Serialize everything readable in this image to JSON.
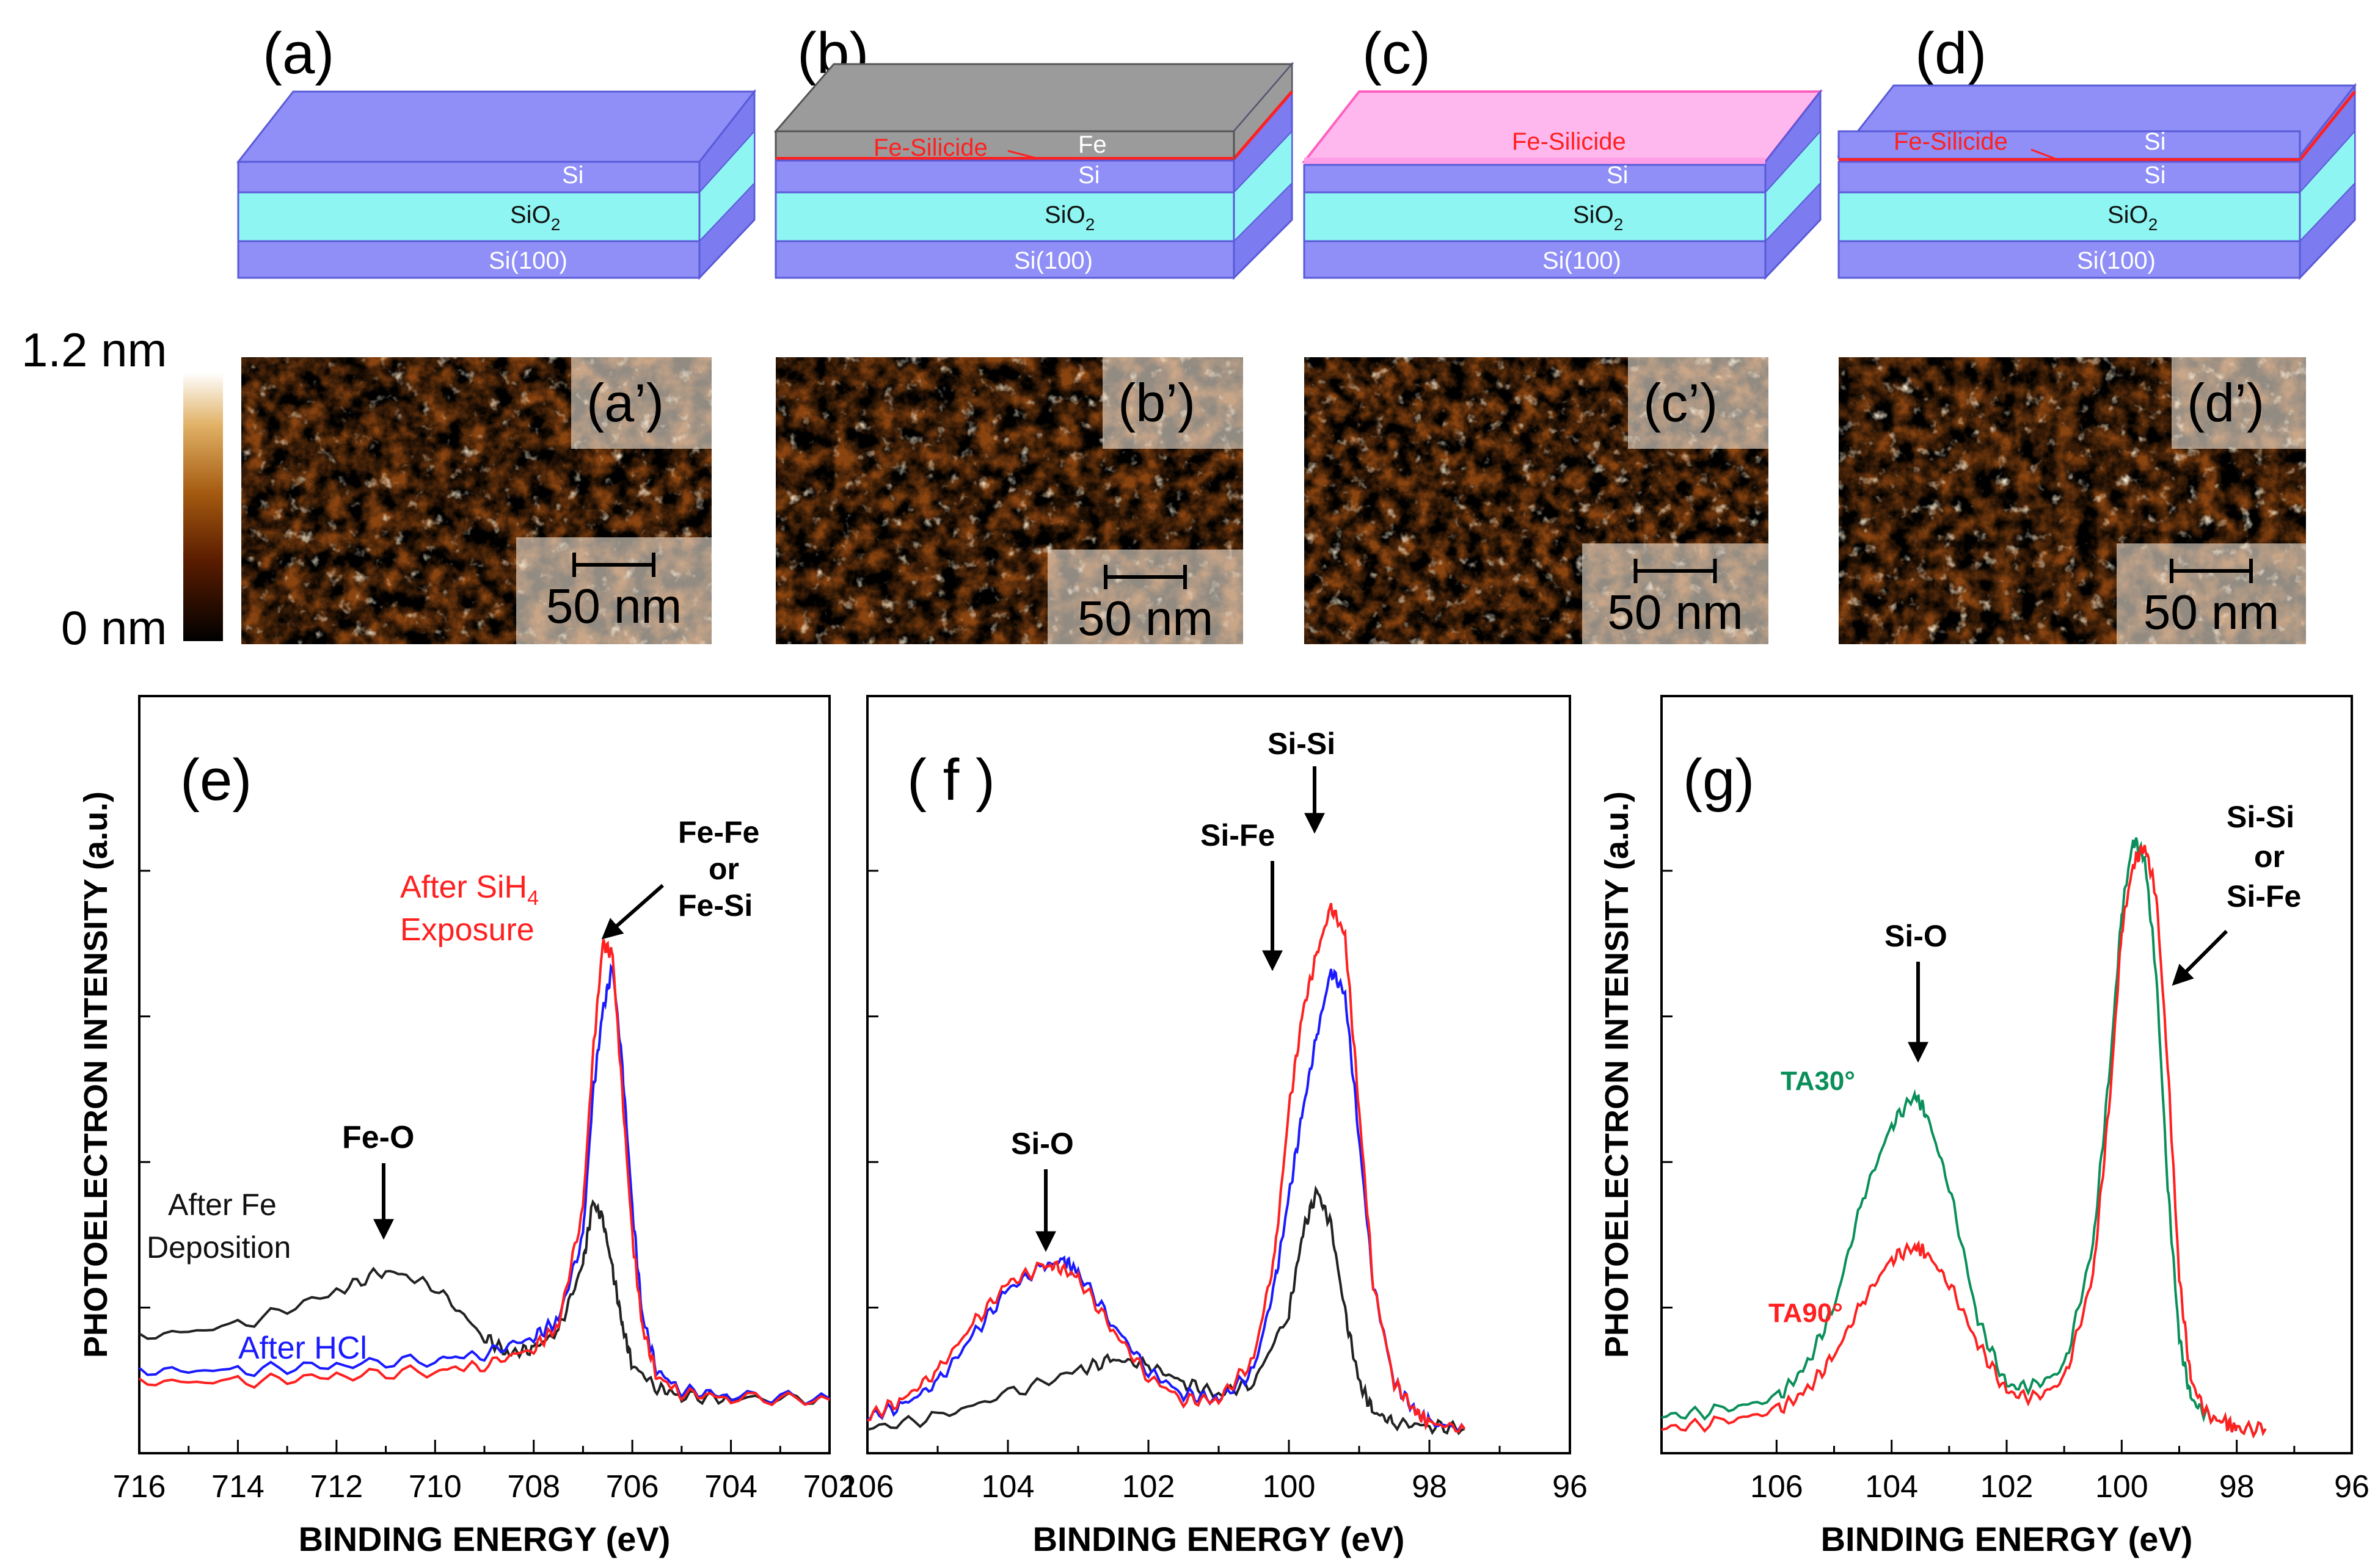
{
  "panels_top": [
    {
      "letter": "(a)",
      "layers": {
        "si": "Si",
        "sio2": "SiO",
        "sio2_sub": "2",
        "substrate": "Si(100)"
      }
    },
    {
      "letter": "(b)",
      "layers": {
        "fe": "Fe",
        "silicide": "Fe-Silicide",
        "si": "Si",
        "sio2": "SiO",
        "sio2_sub": "2",
        "substrate": "Si(100)"
      }
    },
    {
      "letter": "(c)",
      "layers": {
        "silicide": "Fe-Silicide",
        "si": "Si",
        "sio2": "SiO",
        "sio2_sub": "2",
        "substrate": "Si(100)"
      }
    },
    {
      "letter": "(d)",
      "layers": {
        "silicide": "Fe-Silicide",
        "si_top": "Si",
        "si": "Si",
        "sio2": "SiO",
        "sio2_sub": "2",
        "substrate": "Si(100)"
      }
    }
  ],
  "colorbar": {
    "max_label": "1.2 nm",
    "min_label": "0 nm"
  },
  "afm_panels": [
    {
      "label": "(a’)",
      "scalebar": "50 nm"
    },
    {
      "label": "(b’)",
      "scalebar": "50 nm"
    },
    {
      "label": "(c’)",
      "scalebar": "50 nm"
    },
    {
      "label": "(d’)",
      "scalebar": "50 nm"
    }
  ],
  "colors": {
    "black": "#222222",
    "blue": "#1a1aff",
    "red": "#ff2020",
    "green": "#0a8f5a",
    "layer_si": "#8f8ff7",
    "layer_sio2": "#8ff5f2",
    "silicide": "#ff9fe8",
    "fe": "#9b9b9b"
  },
  "chart_data": [
    {
      "type": "line",
      "panel": "(e)",
      "xlabel": "BINDING ENERGY (eV)",
      "ylabel": "PHOTOELECTRON INTENSITY (a.u.)",
      "xlim": [
        716,
        702
      ],
      "ylim": [
        0,
        1
      ],
      "xticks": [
        "716",
        "714",
        "712",
        "710",
        "708",
        "706",
        "704",
        "702"
      ],
      "series": [
        {
          "name": "After Fe Deposition",
          "color": "#222222",
          "x": [
            716,
            714,
            712,
            711,
            710,
            709,
            708.5,
            708,
            707.5,
            707,
            706.8,
            706.6,
            706.4,
            706.2,
            706,
            705.5,
            705,
            704,
            702
          ],
          "y": [
            0.12,
            0.14,
            0.2,
            0.24,
            0.21,
            0.12,
            0.09,
            0.1,
            0.13,
            0.25,
            0.36,
            0.33,
            0.24,
            0.14,
            0.07,
            0.03,
            0.015,
            0.01,
            0.01
          ]
        },
        {
          "name": "After HCl",
          "color": "#1a1aff",
          "x": [
            716,
            714,
            712,
            710,
            709,
            708,
            707.5,
            707,
            706.8,
            706.6,
            706.4,
            706.2,
            706,
            705.8,
            705.5,
            705,
            704,
            702
          ],
          "y": [
            0.06,
            0.06,
            0.07,
            0.08,
            0.09,
            0.12,
            0.15,
            0.3,
            0.55,
            0.7,
            0.78,
            0.6,
            0.35,
            0.16,
            0.06,
            0.025,
            0.015,
            0.01
          ]
        },
        {
          "name": "After SiH4 Exposure",
          "color": "#ff2020",
          "x": [
            716,
            714,
            712,
            710,
            709,
            708,
            707.5,
            707,
            706.8,
            706.6,
            706.4,
            706.2,
            706,
            705.8,
            705.5,
            705,
            704,
            702
          ],
          "y": [
            0.04,
            0.04,
            0.05,
            0.06,
            0.07,
            0.1,
            0.14,
            0.35,
            0.62,
            0.82,
            0.8,
            0.55,
            0.3,
            0.14,
            0.05,
            0.02,
            0.012,
            0.008
          ]
        }
      ],
      "annotations": [
        {
          "text": "Fe-O"
        },
        {
          "text": "Fe-Fe"
        },
        {
          "text": "or"
        },
        {
          "text": "Fe-Si"
        },
        {
          "text": "After SiH",
          "sub": "4"
        },
        {
          "text": "Exposure"
        },
        {
          "text": "After Fe"
        },
        {
          "text": "Deposition"
        },
        {
          "text": "After HCl"
        }
      ]
    },
    {
      "type": "line",
      "panel": "( f )",
      "xlabel": "BINDING ENERGY (eV)",
      "ylabel": "",
      "xlim": [
        106,
        96
      ],
      "ylim": [
        0,
        1
      ],
      "xticks": [
        "106",
        "104",
        "102",
        "100",
        "98",
        "96"
      ],
      "series": [
        {
          "name": "black",
          "color": "#222222",
          "x": [
            106,
            105,
            104,
            103,
            102.5,
            102,
            101.5,
            101,
            100.5,
            100,
            99.8,
            99.6,
            99.4,
            99.2,
            99,
            98.8,
            98.5,
            98,
            97.5
          ],
          "y": [
            0.0,
            0.02,
            0.06,
            0.1,
            0.12,
            0.11,
            0.08,
            0.06,
            0.08,
            0.2,
            0.34,
            0.41,
            0.35,
            0.2,
            0.08,
            0.03,
            0.01,
            0.005,
            0.0
          ]
        },
        {
          "name": "blue",
          "color": "#1a1aff",
          "x": [
            106,
            105.5,
            105,
            104.5,
            104,
            103.5,
            103.2,
            103,
            102.5,
            102,
            101.5,
            101,
            100.5,
            100.2,
            100,
            99.8,
            99.6,
            99.4,
            99.2,
            99,
            98.8,
            98.5,
            98.2,
            98,
            97.5
          ],
          "y": [
            0.02,
            0.04,
            0.08,
            0.16,
            0.24,
            0.28,
            0.29,
            0.27,
            0.18,
            0.1,
            0.06,
            0.05,
            0.1,
            0.25,
            0.4,
            0.55,
            0.68,
            0.79,
            0.75,
            0.5,
            0.25,
            0.08,
            0.03,
            0.01,
            0.0
          ]
        },
        {
          "name": "red",
          "color": "#ff2020",
          "x": [
            106,
            105.5,
            105,
            104.5,
            104,
            103.5,
            103.3,
            103,
            102.5,
            102,
            101.5,
            101,
            100.5,
            100.2,
            100,
            99.8,
            99.6,
            99.4,
            99.2,
            99,
            98.8,
            98.5,
            98.2,
            98,
            97.5
          ],
          "y": [
            0.02,
            0.05,
            0.1,
            0.18,
            0.25,
            0.28,
            0.28,
            0.26,
            0.17,
            0.09,
            0.05,
            0.05,
            0.12,
            0.3,
            0.55,
            0.72,
            0.82,
            0.9,
            0.85,
            0.55,
            0.25,
            0.08,
            0.03,
            0.01,
            0.0
          ]
        }
      ],
      "annotations": [
        {
          "text": "Si-O"
        },
        {
          "text": "Si-Fe"
        },
        {
          "text": "Si-Si"
        }
      ]
    },
    {
      "type": "line",
      "panel": "(g)",
      "xlabel": "BINDING ENERGY (eV)",
      "ylabel": "PHOTOELECTRON INTENSITY (a.u.)",
      "xlim": [
        108,
        96
      ],
      "ylim": [
        0,
        1
      ],
      "xticks": [
        "106",
        "104",
        "102",
        "100",
        "98",
        "96"
      ],
      "series": [
        {
          "name": "TA30°",
          "color": "#0a8f5a",
          "x": [
            108,
            107,
            106,
            105.5,
            105,
            104.5,
            104,
            103.6,
            103.4,
            103,
            102.5,
            102,
            101.5,
            101,
            100.5,
            100.2,
            100,
            99.8,
            99.6,
            99.4,
            99.2,
            99,
            98.8,
            98.5,
            98.2,
            98,
            97.5
          ],
          "y": [
            0.02,
            0.03,
            0.05,
            0.1,
            0.2,
            0.38,
            0.5,
            0.55,
            0.52,
            0.4,
            0.18,
            0.07,
            0.07,
            0.1,
            0.3,
            0.6,
            0.85,
            0.97,
            0.94,
            0.75,
            0.4,
            0.15,
            0.05,
            0.02,
            0.01,
            0.0,
            0.0
          ]
        },
        {
          "name": "TA90°",
          "color": "#ff2020",
          "x": [
            108,
            107,
            106,
            105.5,
            105,
            104.5,
            104,
            103.6,
            103.4,
            103,
            102.5,
            102,
            101.5,
            101,
            100.5,
            100.2,
            100,
            99.8,
            99.6,
            99.4,
            99.2,
            99,
            98.8,
            98.5,
            98.2,
            98,
            97.5
          ],
          "y": [
            0.0,
            0.01,
            0.03,
            0.06,
            0.12,
            0.21,
            0.28,
            0.3,
            0.29,
            0.24,
            0.14,
            0.06,
            0.05,
            0.08,
            0.25,
            0.55,
            0.82,
            0.93,
            0.96,
            0.88,
            0.6,
            0.25,
            0.08,
            0.02,
            0.01,
            0.0,
            0.0
          ]
        }
      ],
      "annotations": [
        {
          "text": "Si-O"
        },
        {
          "text": "Si-Si"
        },
        {
          "text": "or"
        },
        {
          "text": "Si-Fe"
        },
        {
          "text": "TA30°"
        },
        {
          "text": "TA90°"
        }
      ]
    }
  ]
}
